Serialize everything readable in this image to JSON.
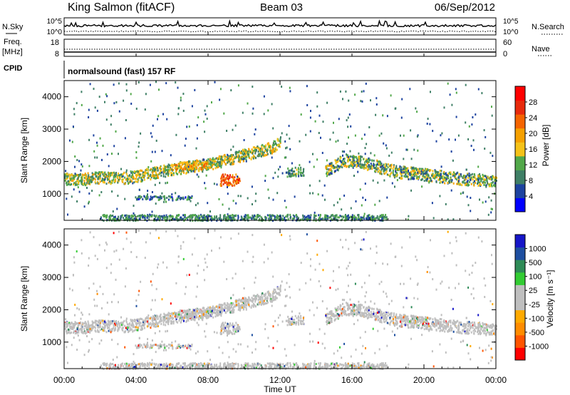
{
  "header": {
    "station": "King Salmon (fitACF)",
    "beam": "Beam 03",
    "date": "06/Sep/2012"
  },
  "status_panels": {
    "nsky_label": "N.Sky",
    "nsearch_label": "N.Search",
    "nsky_ticks": [
      "10^5",
      "10^0"
    ],
    "nsearch_ticks": [
      "10^5",
      "10^0"
    ],
    "freq_label_1": "Freq.",
    "freq_label_2": "[MHz]",
    "freq_ticks": [
      "18",
      "8"
    ],
    "nave_label": "Nave",
    "nave_ticks": [
      "60",
      "0"
    ],
    "cpid_label": "CPID",
    "cpid_text": "normalsound (fast) 157 RF"
  },
  "colors": {
    "power_scale": [
      "#0000ff",
      "#1d43a0",
      "#3f7f66",
      "#52a84a",
      "#f5c218",
      "#f5a000",
      "#f56400",
      "#e82a0c",
      "#ff0000"
    ],
    "velocity_scale": [
      "#ff0000",
      "#ff5500",
      "#ff8c00",
      "#ffaa00",
      "#bfbfbf",
      "#bfbfbf",
      "#33cc33",
      "#2e8b57",
      "#1e4fa0",
      "#1616c8"
    ],
    "ground_scatter": "#bfbfbf"
  },
  "chart_data": {
    "type": "heatmap",
    "xlabel": "Time UT",
    "x_ticks": [
      "00:00",
      "04:00",
      "08:00",
      "12:00",
      "16:00",
      "20:00",
      "00:00"
    ],
    "xlim_hours": [
      0,
      24
    ],
    "ylabel": "Slant Range [km]",
    "y_ticks": [
      1000,
      2000,
      3000,
      4000
    ],
    "ylim_km": [
      180,
      4500
    ],
    "power_colorbar": {
      "label": "Power [dB]",
      "ticks": [
        4,
        8,
        12,
        16,
        20,
        24,
        28
      ],
      "range": [
        0,
        32
      ]
    },
    "velocity_colorbar": {
      "label": "Velocity [m s⁻¹]",
      "ticks": [
        1000,
        500,
        100,
        25,
        -25,
        -100,
        -500,
        -1000
      ]
    },
    "scatter_features": [
      {
        "name": "band",
        "t": [
          0,
          1,
          2,
          3,
          4,
          5,
          6,
          7,
          7.7,
          8.5,
          9.5,
          10.5,
          11.5,
          12
        ],
        "r": [
          1480,
          1470,
          1530,
          1500,
          1550,
          1680,
          1780,
          1860,
          1920,
          2000,
          2150,
          2300,
          2450,
          2600
        ],
        "thickness_km": 180,
        "power": 14
      },
      {
        "name": "band",
        "t": [
          14.5,
          15.5,
          16.5,
          17.5,
          18.5,
          19.5,
          20.5,
          21.5,
          22.5,
          23.5,
          24
        ],
        "r": [
          1700,
          2050,
          2000,
          1850,
          1700,
          1650,
          1580,
          1520,
          1470,
          1430,
          1420
        ],
        "thickness_km": 190,
        "power": 12
      },
      {
        "name": "blob",
        "t": 9.2,
        "r": 1450,
        "dt": 0.55,
        "dr": 180,
        "power": 24
      },
      {
        "name": "blob",
        "t": 7.0,
        "r": 1900,
        "dt": 0.9,
        "dr": 120,
        "power": 18
      },
      {
        "name": "blob",
        "t": 5.5,
        "r": 900,
        "dt": 1.6,
        "dr": 60,
        "power": 8
      },
      {
        "name": "blob",
        "t": 12.8,
        "r": 1700,
        "dt": 0.5,
        "dr": 140,
        "power": 10
      }
    ]
  }
}
